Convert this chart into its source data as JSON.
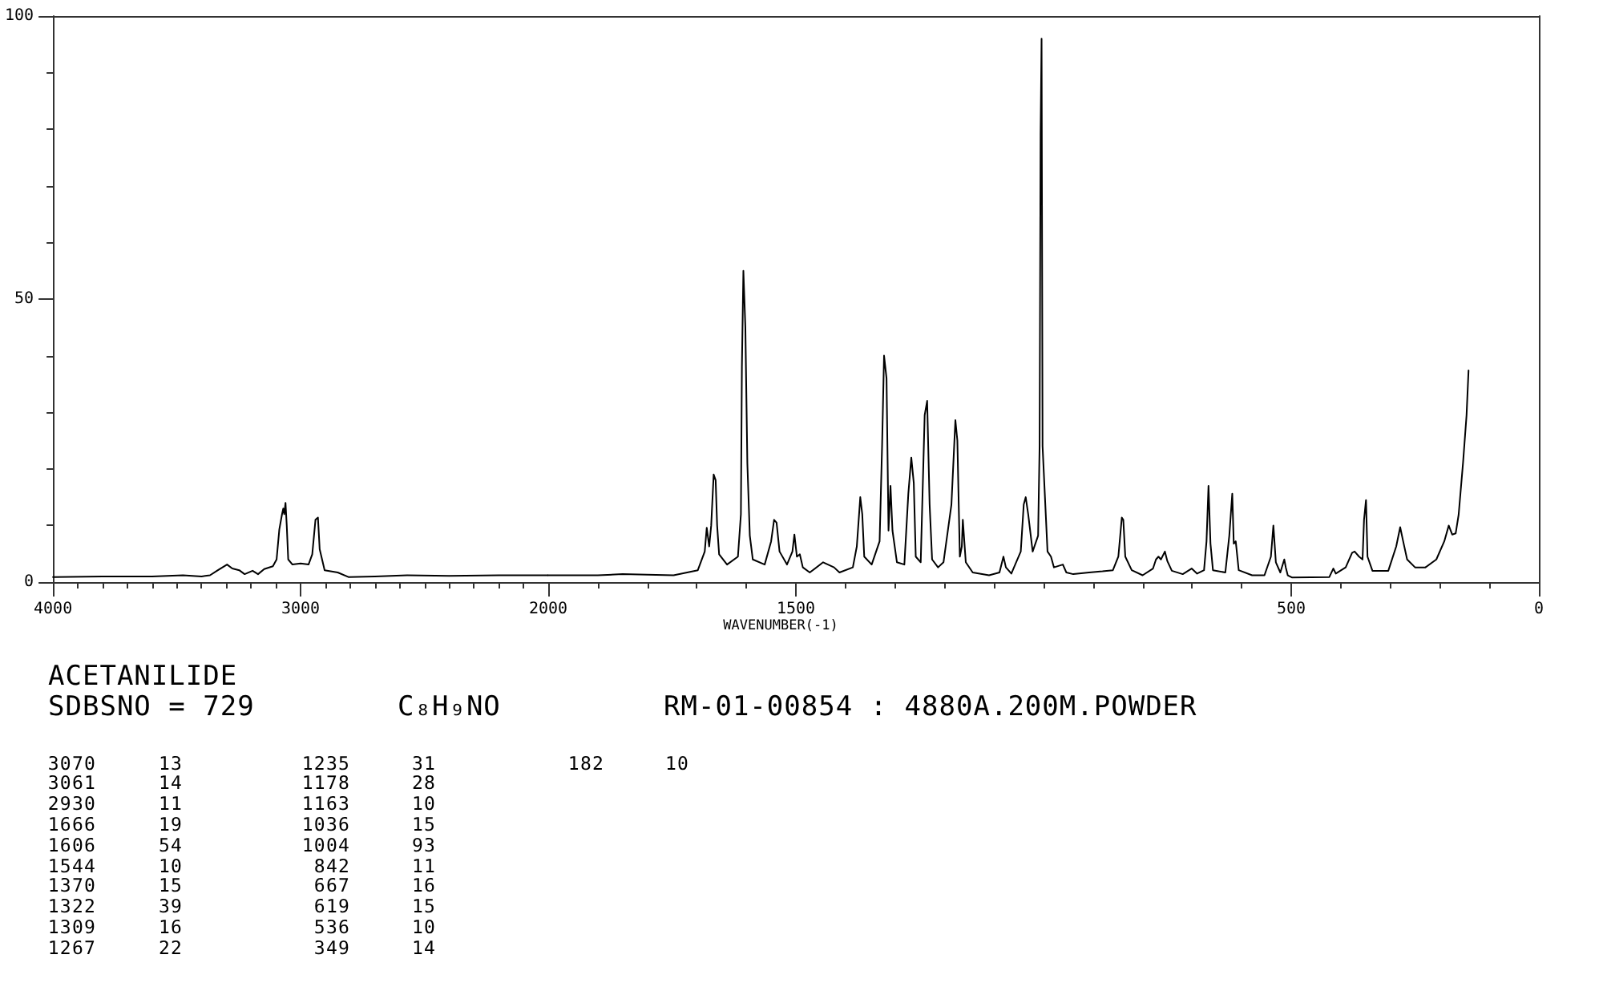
{
  "chart_data": [
    {
      "type": "line",
      "xlim": [
        4000,
        2000
      ],
      "xticks": [
        {
          "value": 4000,
          "label": "4000"
        },
        {
          "value": 3900,
          "label": null
        },
        {
          "value": 3800,
          "label": null
        },
        {
          "value": 3700,
          "label": null
        },
        {
          "value": 3600,
          "label": null
        },
        {
          "value": 3500,
          "label": null
        },
        {
          "value": 3400,
          "label": null
        },
        {
          "value": 3300,
          "label": null
        },
        {
          "value": 3200,
          "label": null
        },
        {
          "value": 3100,
          "label": null
        },
        3000,
        {
          "value": 2900,
          "label": null
        },
        {
          "value": 2800,
          "label": null
        },
        {
          "value": 2700,
          "label": null
        },
        {
          "value": 2600,
          "label": null
        },
        {
          "value": 2500,
          "label": null
        },
        {
          "value": 2400,
          "label": null
        },
        {
          "value": 2300,
          "label": null
        },
        {
          "value": 2200,
          "label": null
        },
        {
          "value": 2100,
          "label": null
        }
      ],
      "ylim": [
        0,
        100
      ],
      "yticks": [
        0,
        {
          "value": 10,
          "label": null
        },
        {
          "value": 20,
          "label": null
        },
        {
          "value": 30,
          "label": null
        },
        {
          "value": 40,
          "label": null
        },
        50,
        {
          "value": 60,
          "label": null
        },
        {
          "value": 70,
          "label": null
        },
        {
          "value": 80,
          "label": null
        },
        {
          "value": 90,
          "label": null
        },
        100
      ],
      "series": [
        {
          "color": "#000000",
          "x": [
            4000,
            3800,
            3600,
            3475,
            3400,
            3366,
            3334,
            3297,
            3276,
            3248,
            3226,
            3194,
            3172,
            3147,
            3112,
            3097,
            3086,
            3075,
            3070,
            3066,
            3061,
            3056,
            3050,
            3033,
            3000,
            2968,
            2953,
            2940,
            2930,
            2923,
            2903,
            2850,
            2807,
            2700,
            2570,
            2400,
            2200,
            2000
          ],
          "values": [
            0.9,
            1.0,
            1.0,
            1.2,
            1.0,
            1.2,
            2.1,
            3.1,
            2.4,
            2.1,
            1.4,
            2.0,
            1.4,
            2.3,
            2.8,
            4.0,
            9.3,
            12,
            13,
            12,
            14,
            10,
            4.0,
            3.1,
            3.3,
            3.1,
            4.9,
            11,
            11.4,
            5.8,
            2.1,
            1.7,
            0.9,
            1.0,
            1.2,
            1.1,
            1.2,
            1.2
          ]
        }
      ]
    },
    {
      "type": "line",
      "xlabel": "WAVENUMBER(-1)",
      "tick_labels": "x",
      "xlim": [
        2000,
        0
      ],
      "xticks": [
        2000,
        {
          "value": 1900,
          "label": null
        },
        {
          "value": 1800,
          "label": null
        },
        {
          "value": 1700,
          "label": null
        },
        {
          "value": 1600,
          "label": null
        },
        1500,
        {
          "value": 1400,
          "label": null
        },
        {
          "value": 1300,
          "label": null
        },
        {
          "value": 1200,
          "label": null
        },
        {
          "value": 1100,
          "label": null
        },
        {
          "value": 1000,
          "label": null
        },
        {
          "value": 900,
          "label": null
        },
        {
          "value": 800,
          "label": null
        },
        {
          "value": 700,
          "label": null
        },
        {
          "value": 600,
          "label": null
        },
        500,
        {
          "value": 400,
          "label": null
        },
        {
          "value": 300,
          "label": null
        },
        {
          "value": 200,
          "label": null
        },
        {
          "value": 100,
          "label": null
        },
        0
      ],
      "ylim": [
        0,
        100
      ],
      "series": [
        {
          "color": "#000000",
          "x": [
            2000,
            1900,
            1850,
            1800,
            1747,
            1698,
            1684,
            1680,
            1675,
            1671,
            1666,
            1662,
            1659,
            1655,
            1639,
            1617,
            1611,
            1609,
            1606,
            1602,
            1598,
            1593,
            1587,
            1563,
            1550,
            1544,
            1539,
            1533,
            1518,
            1507,
            1503,
            1498,
            1492,
            1486,
            1472,
            1445,
            1423,
            1412,
            1385,
            1377,
            1370,
            1366,
            1362,
            1347,
            1331,
            1326,
            1322,
            1317,
            1313,
            1309,
            1305,
            1296,
            1281,
            1273,
            1267,
            1262,
            1258,
            1248,
            1240,
            1235,
            1230,
            1225,
            1213,
            1202,
            1186,
            1178,
            1174,
            1169,
            1165,
            1163,
            1157,
            1143,
            1110,
            1089,
            1081,
            1076,
            1065,
            1046,
            1040,
            1036,
            1031,
            1022,
            1011,
            1008,
            1006,
            1004,
            1002,
            992,
            985,
            979,
            961,
            954,
            940,
            908,
            881,
            860,
            849,
            842,
            839,
            835,
            822,
            800,
            779,
            773,
            768,
            763,
            755,
            750,
            741,
            719,
            701,
            690,
            676,
            671,
            667,
            663,
            658,
            633,
            625,
            619,
            616,
            612,
            606,
            579,
            554,
            541,
            536,
            531,
            522,
            514,
            511,
            507,
            498,
            423,
            415,
            410,
            390,
            377,
            372,
            363,
            356,
            353,
            349,
            346,
            336,
            304,
            288,
            280,
            274,
            266,
            250,
            229,
            207,
            191,
            182,
            175,
            168,
            162,
            153,
            146,
            142
          ],
          "values": [
            1.2,
            1.2,
            1.4,
            1.3,
            1.2,
            2.1,
            5.4,
            9.6,
            6.3,
            10,
            19,
            18,
            10,
            4.9,
            3.1,
            4.5,
            12,
            38,
            55,
            45,
            21,
            8.2,
            4,
            3.1,
            7.2,
            11,
            10.5,
            5.4,
            3.1,
            5.4,
            8.4,
            4.5,
            4.9,
            2.6,
            1.7,
            3.5,
            2.6,
            1.7,
            2.6,
            6.3,
            15,
            12,
            4.5,
            3.1,
            7.2,
            24,
            40,
            36,
            9.1,
            17,
            9.1,
            3.5,
            3.1,
            15.6,
            22,
            17.5,
            4.5,
            3.5,
            29.5,
            32,
            13.7,
            4,
            2.6,
            3.5,
            13.7,
            28.6,
            25,
            4.5,
            6.3,
            11,
            3.5,
            1.7,
            1.2,
            1.7,
            4.5,
            2.6,
            1.5,
            5.4,
            13.7,
            15,
            12,
            5.4,
            8.2,
            24,
            79,
            96,
            24,
            5.4,
            4.5,
            2.6,
            3.1,
            1.7,
            1.4,
            1.7,
            1.9,
            2.1,
            4.5,
            11.4,
            11,
            4.5,
            2.1,
            1.2,
            2.4,
            4,
            4.5,
            4,
            5.4,
            3.7,
            2,
            1.4,
            2.4,
            1.5,
            2.1,
            7.2,
            17,
            6.8,
            2.1,
            1.7,
            8.2,
            15.6,
            6.8,
            7.2,
            2.1,
            1.2,
            1.2,
            4.5,
            10,
            3.5,
            1.7,
            4,
            2.6,
            1.2,
            0.8,
            0.9,
            2.4,
            1.5,
            2.6,
            5.2,
            5.4,
            4.5,
            4,
            11,
            14.5,
            4.5,
            2,
            2,
            6.3,
            9.7,
            7.2,
            4,
            2.6,
            2.6,
            4,
            7.2,
            10,
            8.4,
            8.6,
            11.9,
            21.2,
            29.5,
            37.4
          ]
        }
      ]
    },
    {
      "type": "other",
      "title": "ACETANILIDE",
      "annotations": [
        "SDBSNO = 729",
        "C₈H₉NO",
        "RM-01-00854 : 4880A.200M.POWDER",
        "3070",
        "13",
        "3061",
        "14",
        "2930",
        "11",
        "1666",
        "19",
        "1606",
        "54",
        "1544",
        "10",
        "1370",
        "15",
        "1322",
        "39",
        "1309",
        "16",
        "1267",
        "22",
        "1235",
        "31",
        "1178",
        "28",
        "1163",
        "10",
        "1036",
        "15",
        "1004",
        "93",
        "842",
        "11",
        "667",
        "16",
        "619",
        "15",
        "536",
        "10",
        "349",
        "14",
        "182",
        "10"
      ]
    }
  ]
}
